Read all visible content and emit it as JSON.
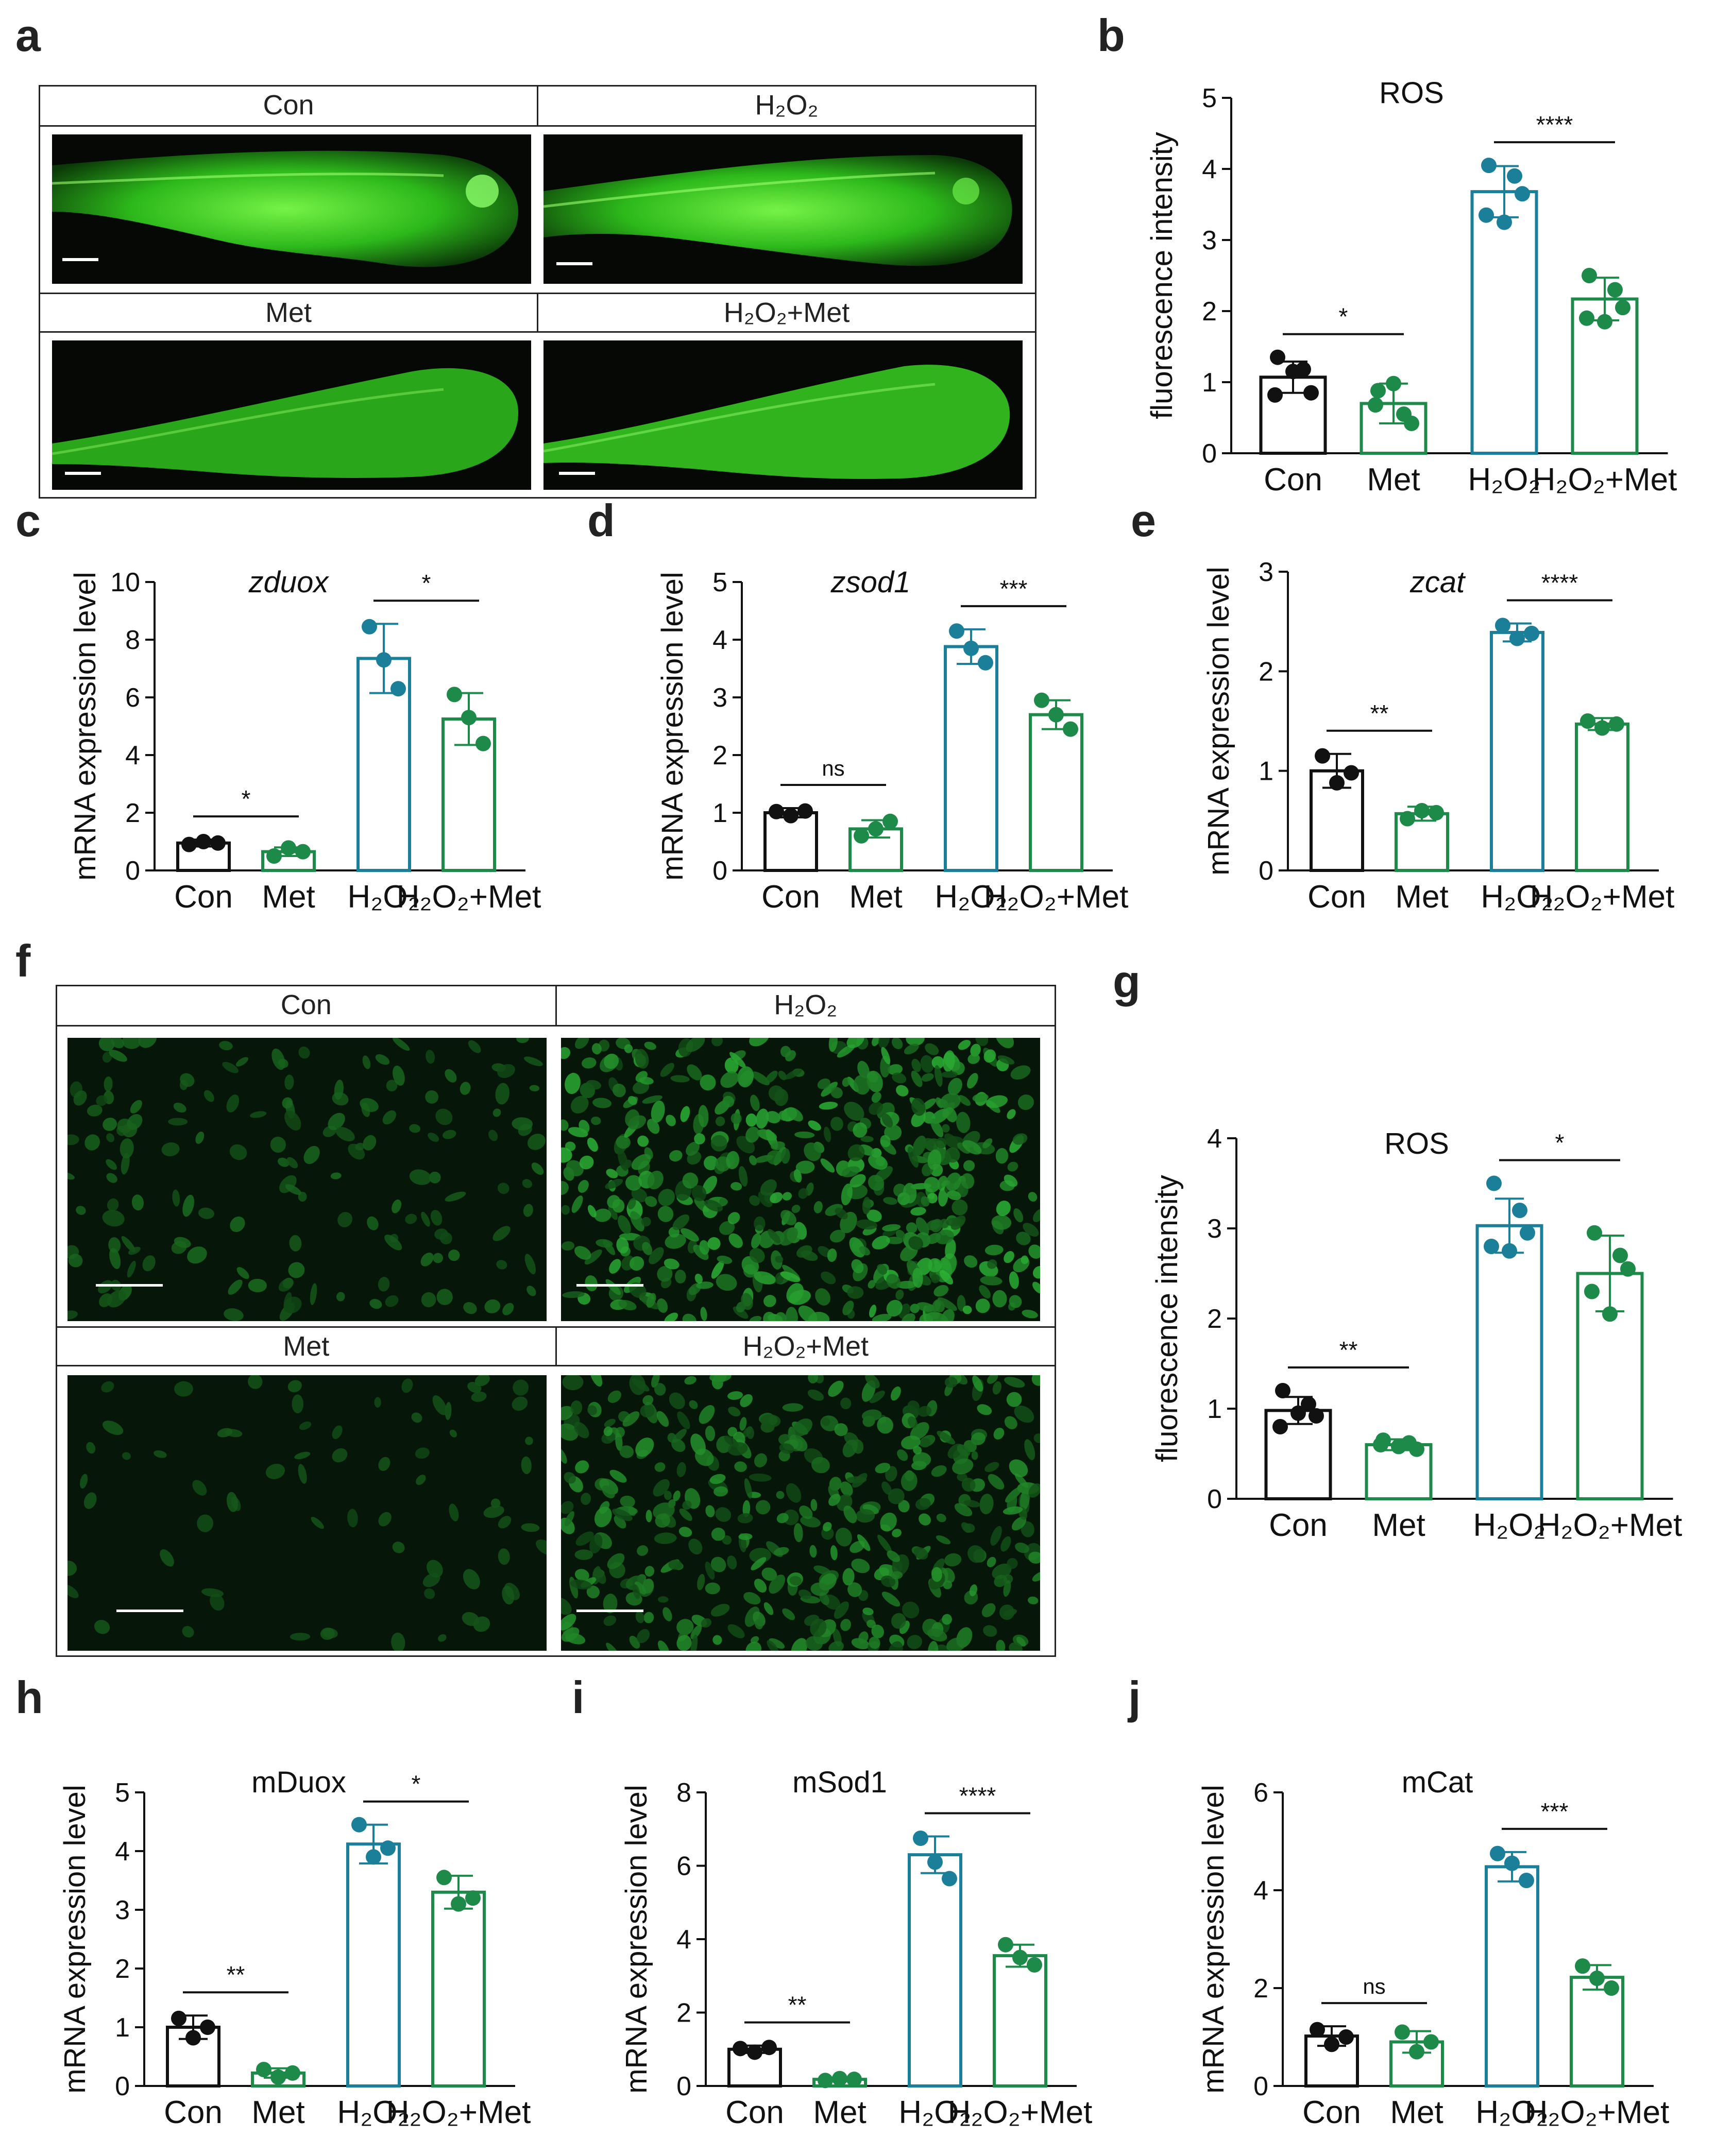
{
  "panels": {
    "a": "a",
    "b": "b",
    "c": "c",
    "d": "d",
    "e": "e",
    "f": "f",
    "g": "g",
    "h": "h",
    "i": "i",
    "j": "j"
  },
  "image_panel_a": {
    "labels": [
      "Con",
      "H₂O₂",
      "Met",
      "H₂O₂+Met"
    ],
    "fluorescence_color": "#3fd12a"
  },
  "image_panel_f": {
    "labels": [
      "Con",
      "H₂O₂",
      "Met",
      "H₂O₂+Met"
    ],
    "fluorescence_color": "#2f9a2a"
  },
  "colors": {
    "con": "#111111",
    "met": "#1e8a4a",
    "h2o2": "#1b7f99",
    "h2o2met": "#1e8a4a"
  },
  "chart_data": [
    {
      "id": "b",
      "type": "bar",
      "title": "ROS",
      "title_italic": false,
      "ylabel": "fluorescence intensity",
      "xlabel": "",
      "categories": [
        "Con",
        "Met",
        "H₂O₂",
        "H₂O₂+Met"
      ],
      "values": [
        1.07,
        0.7,
        3.68,
        2.17
      ],
      "errors": [
        0.22,
        0.28,
        0.36,
        0.3
      ],
      "points": [
        [
          1.35,
          1.18,
          0.85,
          0.82,
          1.15
        ],
        [
          0.88,
          0.55,
          0.42,
          0.68,
          0.98
        ],
        [
          4.05,
          3.9,
          3.65,
          3.35,
          3.25
        ],
        [
          2.5,
          2.3,
          2.05,
          1.9,
          1.85
        ]
      ],
      "ylim": [
        0,
        5
      ],
      "yticks": [
        0,
        1,
        2,
        3,
        4,
        5
      ],
      "significance": [
        {
          "from": 0,
          "to": 1,
          "label": "*"
        },
        {
          "from": 2,
          "to": 3,
          "label": "****"
        }
      ]
    },
    {
      "id": "c",
      "type": "bar",
      "title": "zduox",
      "title_italic": true,
      "ylabel": "mRNA expression level",
      "xlabel": "",
      "categories": [
        "Con",
        "Met",
        "H₂O₂",
        "H₂O₂+Met"
      ],
      "values": [
        0.95,
        0.65,
        7.35,
        5.25
      ],
      "errors": [
        0.12,
        0.15,
        1.2,
        0.9
      ],
      "points": [
        [
          0.9,
          1.0,
          0.95
        ],
        [
          0.5,
          0.78,
          0.65
        ],
        [
          8.45,
          7.3,
          6.3
        ],
        [
          6.1,
          5.3,
          4.4
        ]
      ],
      "ylim": [
        0,
        10
      ],
      "yticks": [
        0,
        2,
        4,
        6,
        8,
        10
      ],
      "significance": [
        {
          "from": 0,
          "to": 1,
          "label": "*"
        },
        {
          "from": 2,
          "to": 3,
          "label": "*"
        }
      ]
    },
    {
      "id": "d",
      "type": "bar",
      "title": "zsod1",
      "title_italic": true,
      "ylabel": "mRNA expression level",
      "xlabel": "",
      "categories": [
        "Con",
        "Met",
        "H₂O₂",
        "H₂O₂+Met"
      ],
      "values": [
        1.0,
        0.72,
        3.88,
        2.7
      ],
      "errors": [
        0.08,
        0.15,
        0.3,
        0.25
      ],
      "points": [
        [
          1.02,
          0.95,
          1.03
        ],
        [
          0.6,
          0.72,
          0.85
        ],
        [
          4.15,
          3.85,
          3.6
        ],
        [
          2.95,
          2.7,
          2.45
        ]
      ],
      "ylim": [
        0,
        5
      ],
      "yticks": [
        0,
        1,
        2,
        3,
        4,
        5
      ],
      "significance": [
        {
          "from": 0,
          "to": 1,
          "label": "ns"
        },
        {
          "from": 2,
          "to": 3,
          "label": "***"
        }
      ]
    },
    {
      "id": "e",
      "type": "bar",
      "title": "zcat",
      "title_italic": true,
      "ylabel": "mRNA expression level",
      "xlabel": "",
      "categories": [
        "Con",
        "Met",
        "H₂O₂",
        "H₂O₂+Met"
      ],
      "values": [
        1.0,
        0.57,
        2.39,
        1.47
      ],
      "errors": [
        0.17,
        0.07,
        0.09,
        0.06
      ],
      "points": [
        [
          1.15,
          0.88,
          0.98
        ],
        [
          0.52,
          0.6,
          0.58
        ],
        [
          2.46,
          2.33,
          2.38
        ],
        [
          1.5,
          1.43,
          1.47
        ]
      ],
      "ylim": [
        0,
        3
      ],
      "yticks": [
        0,
        1,
        2,
        3
      ],
      "significance": [
        {
          "from": 0,
          "to": 1,
          "label": "**"
        },
        {
          "from": 2,
          "to": 3,
          "label": "****"
        }
      ]
    },
    {
      "id": "g",
      "type": "bar",
      "title": "ROS",
      "title_italic": false,
      "ylabel": "fluorescence intensity",
      "xlabel": "",
      "categories": [
        "Con",
        "Met",
        "H₂O₂",
        "H₂O₂+Met"
      ],
      "values": [
        0.98,
        0.6,
        3.03,
        2.5
      ],
      "errors": [
        0.15,
        0.06,
        0.3,
        0.42
      ],
      "points": [
        [
          1.2,
          1.05,
          0.92,
          0.8,
          0.95
        ],
        [
          0.65,
          0.62,
          0.55,
          0.6,
          0.58
        ],
        [
          3.5,
          3.2,
          2.95,
          2.8,
          2.75
        ],
        [
          2.95,
          2.7,
          2.55,
          2.3,
          2.05
        ]
      ],
      "ylim": [
        0,
        4
      ],
      "yticks": [
        0,
        1,
        2,
        3,
        4
      ],
      "significance": [
        {
          "from": 0,
          "to": 1,
          "label": "**"
        },
        {
          "from": 2,
          "to": 3,
          "label": "*"
        }
      ]
    },
    {
      "id": "h",
      "type": "bar",
      "title": "mDuox",
      "title_italic": false,
      "ylabel": "mRNA expression level",
      "xlabel": "",
      "categories": [
        "Con",
        "Met",
        "H₂O₂",
        "H₂O₂+Met"
      ],
      "values": [
        1.0,
        0.22,
        4.12,
        3.3
      ],
      "errors": [
        0.2,
        0.08,
        0.33,
        0.28
      ],
      "points": [
        [
          1.15,
          0.82,
          1.0
        ],
        [
          0.28,
          0.15,
          0.22
        ],
        [
          4.45,
          3.9,
          4.05
        ],
        [
          3.55,
          3.1,
          3.2
        ]
      ],
      "ylim": [
        0,
        5
      ],
      "yticks": [
        0,
        1,
        2,
        3,
        4,
        5
      ],
      "significance": [
        {
          "from": 0,
          "to": 1,
          "label": "**"
        },
        {
          "from": 2,
          "to": 3,
          "label": "*"
        }
      ]
    },
    {
      "id": "i",
      "type": "bar",
      "title": "mSod1",
      "title_italic": false,
      "ylabel": "mRNA expression level",
      "xlabel": "",
      "categories": [
        "Con",
        "Met",
        "H₂O₂",
        "H₂O₂+Met"
      ],
      "values": [
        1.0,
        0.18,
        6.3,
        3.55
      ],
      "errors": [
        0.1,
        0.05,
        0.5,
        0.3
      ],
      "points": [
        [
          1.02,
          0.92,
          1.05
        ],
        [
          0.15,
          0.2,
          0.18
        ],
        [
          6.75,
          6.1,
          5.65
        ],
        [
          3.85,
          3.5,
          3.3
        ]
      ],
      "ylim": [
        0,
        8
      ],
      "yticks": [
        0,
        2,
        4,
        6,
        8
      ],
      "significance": [
        {
          "from": 0,
          "to": 1,
          "label": "**"
        },
        {
          "from": 2,
          "to": 3,
          "label": "****"
        }
      ]
    },
    {
      "id": "j",
      "type": "bar",
      "title": "mCat",
      "title_italic": false,
      "ylabel": "mRNA expression level",
      "xlabel": "",
      "categories": [
        "Con",
        "Met",
        "H₂O₂",
        "H₂O₂+Met"
      ],
      "values": [
        1.02,
        0.9,
        4.48,
        2.22
      ],
      "errors": [
        0.2,
        0.22,
        0.3,
        0.25
      ],
      "points": [
        [
          1.15,
          0.85,
          1.0
        ],
        [
          1.1,
          0.7,
          0.9
        ],
        [
          4.75,
          4.55,
          4.2
        ],
        [
          2.45,
          2.2,
          2.0
        ]
      ],
      "ylim": [
        0,
        6
      ],
      "yticks": [
        0,
        2,
        4,
        6
      ],
      "significance": [
        {
          "from": 0,
          "to": 1,
          "label": "ns"
        },
        {
          "from": 2,
          "to": 3,
          "label": "***"
        }
      ]
    }
  ]
}
